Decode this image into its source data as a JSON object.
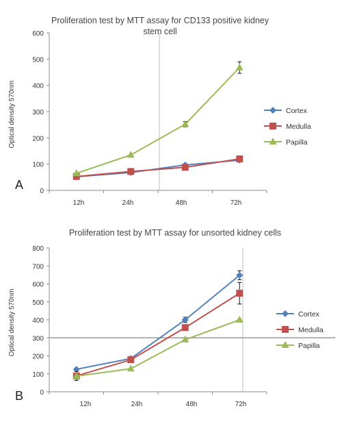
{
  "chart_data": [
    {
      "panel_label": "A",
      "type": "line",
      "title": "Proliferation test by MTT assay for CD133 positive kidney stem cell",
      "title_lines": [
        "Proliferation test by MTT assay for CD133 positive kidney",
        "stem cell"
      ],
      "xlabel": "",
      "ylabel": "Optical density 570nm",
      "categories": [
        "12h",
        "24h",
        "48h",
        "72h"
      ],
      "ylim": [
        0,
        600
      ],
      "yticks": [
        0,
        100,
        200,
        300,
        400,
        500,
        600
      ],
      "grid": "none",
      "legend_position": "right",
      "series": [
        {
          "name": "Cortex",
          "color": "#4F81BD",
          "marker": "diamond",
          "values": [
            52,
            68,
            97,
            115
          ]
        },
        {
          "name": "Medulla",
          "color": "#C0504D",
          "marker": "square",
          "values": [
            53,
            72,
            88,
            120
          ]
        },
        {
          "name": "Papilla",
          "color": "#9BBB59",
          "marker": "triangle",
          "values": [
            65,
            135,
            252,
            468
          ],
          "error": [
            0,
            0,
            10,
            22
          ]
        }
      ]
    },
    {
      "panel_label": "B",
      "type": "line",
      "title": "Proliferation test by MTT assay for unsorted kidney cells",
      "title_lines": [
        "Proliferation test by MTT assay for unsorted kidney cells"
      ],
      "xlabel": "",
      "ylabel": "Optical density 570nm",
      "categories": [
        "12h",
        "24h",
        "48h",
        "72h"
      ],
      "ylim": [
        0,
        800
      ],
      "yticks": [
        0,
        100,
        200,
        300,
        400,
        500,
        600,
        700,
        800
      ],
      "grid": "none",
      "legend_position": "right",
      "series": [
        {
          "name": "Cortex",
          "color": "#4F81BD",
          "marker": "diamond",
          "values": [
            125,
            185,
            400,
            648
          ],
          "error": [
            0,
            0,
            15,
            25
          ]
        },
        {
          "name": "Medulla",
          "color": "#C0504D",
          "marker": "square",
          "values": [
            88,
            178,
            357,
            548
          ],
          "error": [
            25,
            0,
            0,
            60
          ]
        },
        {
          "name": "Papilla",
          "color": "#9BBB59",
          "marker": "triangle",
          "values": [
            87,
            128,
            290,
            400
          ],
          "error": [
            0,
            0,
            0,
            0
          ]
        }
      ]
    }
  ]
}
